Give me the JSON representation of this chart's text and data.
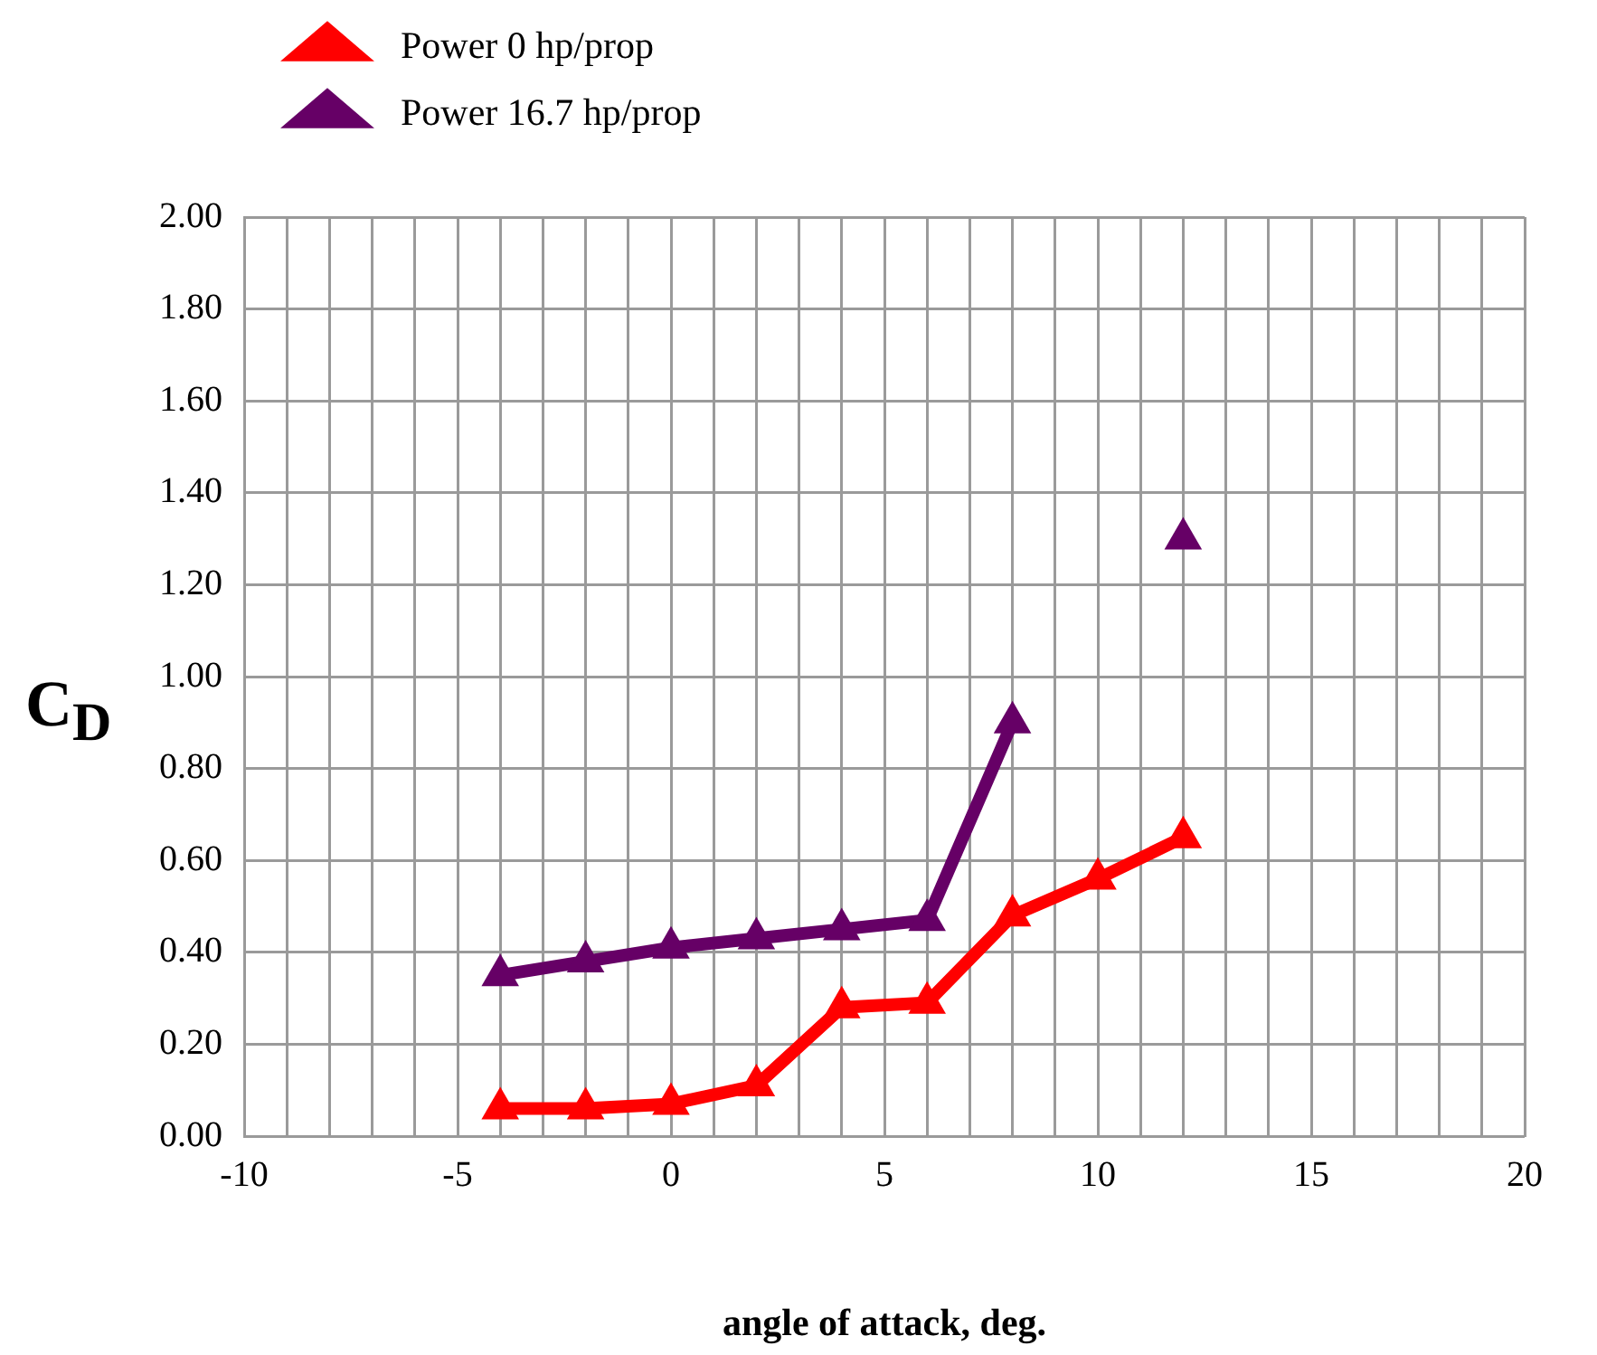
{
  "chart_data": {
    "type": "line",
    "xlabel": "angle of attack, deg.",
    "ylabel": "C$_{D}$",
    "x": [
      -4,
      -2,
      0,
      2,
      4,
      6,
      8,
      10,
      12
    ],
    "series": [
      {
        "name": "Power 0 hp/prop",
        "color": "#ff0000",
        "values": [
          0.06,
          0.06,
          0.07,
          0.11,
          0.28,
          0.29,
          0.48,
          0.56,
          0.65
        ]
      },
      {
        "name": "Power 16.7 hp/prop",
        "color": "#660066",
        "values": [
          0.35,
          0.38,
          0.41,
          0.43,
          0.45,
          0.47,
          0.9,
          null,
          1.3
        ]
      }
    ],
    "xlim": [
      -10,
      20
    ],
    "xticks": [
      -10,
      {
        "value": -9,
        "label": null
      },
      {
        "value": -8,
        "label": null
      },
      {
        "value": -7,
        "label": null
      },
      {
        "value": -6,
        "label": null
      },
      -5,
      {
        "value": -4,
        "label": null
      },
      {
        "value": -3,
        "label": null
      },
      {
        "value": -2,
        "label": null
      },
      {
        "value": -1,
        "label": null
      },
      0,
      {
        "value": 1,
        "label": null
      },
      {
        "value": 2,
        "label": null
      },
      {
        "value": 3,
        "label": null
      },
      {
        "value": 4,
        "label": null
      },
      5,
      {
        "value": 6,
        "label": null
      },
      {
        "value": 7,
        "label": null
      },
      {
        "value": 8,
        "label": null
      },
      {
        "value": 9,
        "label": null
      },
      10,
      {
        "value": 11,
        "label": null
      },
      {
        "value": 12,
        "label": null
      },
      {
        "value": 13,
        "label": null
      },
      {
        "value": 14,
        "label": null
      },
      15,
      {
        "value": 16,
        "label": null
      },
      {
        "value": 17,
        "label": null
      },
      {
        "value": 18,
        "label": null
      },
      {
        "value": 19,
        "label": null
      },
      20
    ],
    "ylim": [
      0,
      2
    ],
    "yticks": [
      {
        "value": 0,
        "label": "0.00"
      },
      {
        "value": 0.2,
        "label": "0.20"
      },
      {
        "value": 0.4,
        "label": "0.40"
      },
      {
        "value": 0.6,
        "label": "0.60"
      },
      {
        "value": 0.8,
        "label": "0.80"
      },
      {
        "value": 1,
        "label": "1.00"
      },
      {
        "value": 1.2,
        "label": "1.20"
      },
      {
        "value": 1.4,
        "label": "1.40"
      },
      {
        "value": 1.6,
        "label": "1.60"
      },
      {
        "value": 1.8,
        "label": "1.80"
      },
      {
        "value": 2,
        "label": "2.00"
      }
    ],
    "grid": true,
    "legend": "top left",
    "marker": "triangle",
    "line_style": "solid"
  }
}
